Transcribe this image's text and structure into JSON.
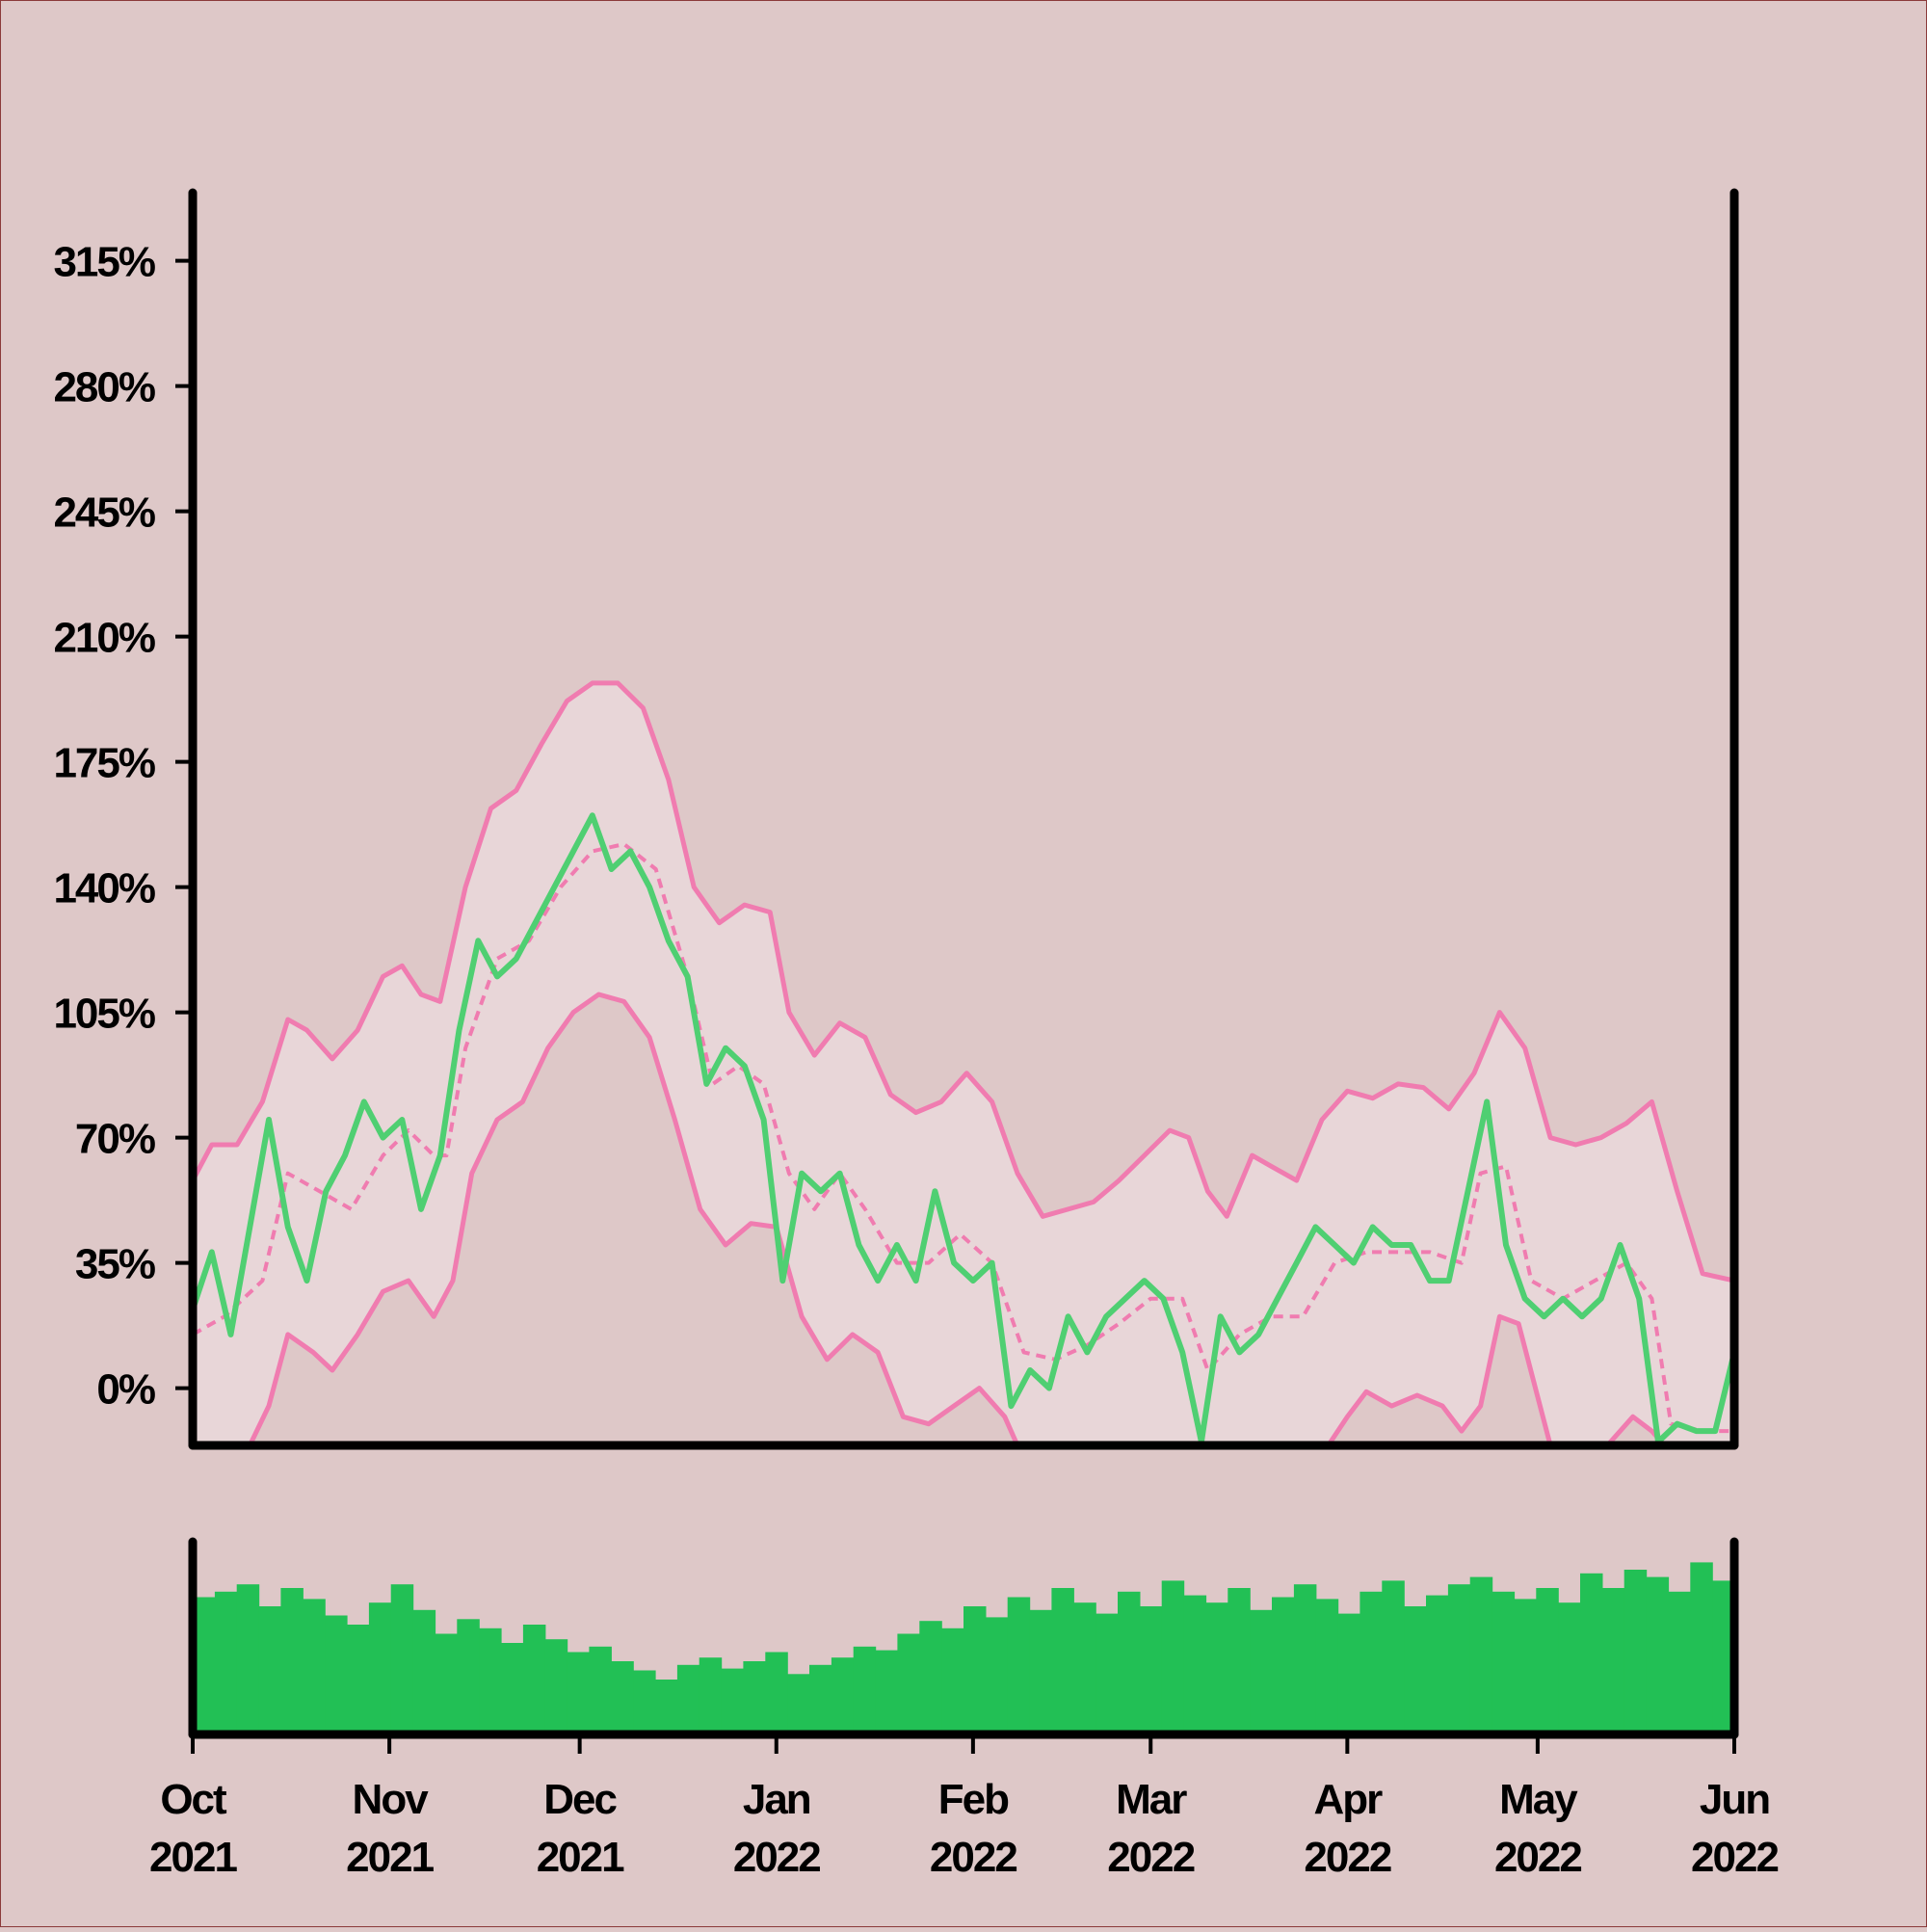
{
  "chart_data": {
    "type": "line",
    "title": "",
    "xlabel": "",
    "ylabel": "",
    "y_tick_labels": [
      "0%",
      "35%",
      "70%",
      "105%",
      "140%",
      "175%",
      "210%",
      "245%",
      "280%",
      "315%"
    ],
    "y_tick_values": [
      0,
      35,
      70,
      105,
      140,
      175,
      210,
      245,
      280,
      315
    ],
    "ylim": [
      -16,
      334
    ],
    "x_tick_labels": [
      {
        "month": "Oct",
        "year": "2021"
      },
      {
        "month": "Nov",
        "year": "2021"
      },
      {
        "month": "Dec",
        "year": "2021"
      },
      {
        "month": "Jan",
        "year": "2022"
      },
      {
        "month": "Feb",
        "year": "2022"
      },
      {
        "month": "Mar",
        "year": "2022"
      },
      {
        "month": "Apr",
        "year": "2022"
      },
      {
        "month": "May",
        "year": "2022"
      },
      {
        "month": "Jun",
        "year": "2022"
      }
    ],
    "x_tick_dates": [
      "2021-10-01",
      "2021-11-01",
      "2021-12-01",
      "2022-01-01",
      "2022-02-01",
      "2022-03-01",
      "2022-04-01",
      "2022-05-01",
      "2022-06-01"
    ],
    "xlim": [
      "2021-10-01",
      "2022-06-01"
    ],
    "grid": false,
    "legend": "none",
    "series": [
      {
        "role": "price",
        "color": "#4fcf72",
        "points": [
          [
            "2021-10-01",
            22
          ],
          [
            "2021-10-04",
            38
          ],
          [
            "2021-10-07",
            15
          ],
          [
            "2021-10-10",
            45
          ],
          [
            "2021-10-13",
            75
          ],
          [
            "2021-10-16",
            45
          ],
          [
            "2021-10-19",
            30
          ],
          [
            "2021-10-22",
            55
          ],
          [
            "2021-10-25",
            65
          ],
          [
            "2021-10-28",
            80
          ],
          [
            "2021-10-31",
            70
          ],
          [
            "2021-11-03",
            75
          ],
          [
            "2021-11-06",
            50
          ],
          [
            "2021-11-09",
            65
          ],
          [
            "2021-11-12",
            100
          ],
          [
            "2021-11-15",
            125
          ],
          [
            "2021-11-18",
            115
          ],
          [
            "2021-11-21",
            120
          ],
          [
            "2021-11-24",
            130
          ],
          [
            "2021-11-27",
            140
          ],
          [
            "2021-11-30",
            150
          ],
          [
            "2021-12-03",
            160
          ],
          [
            "2021-12-06",
            145
          ],
          [
            "2021-12-09",
            150
          ],
          [
            "2021-12-12",
            140
          ],
          [
            "2021-12-15",
            125
          ],
          [
            "2021-12-18",
            115
          ],
          [
            "2021-12-21",
            85
          ],
          [
            "2021-12-24",
            95
          ],
          [
            "2021-12-27",
            90
          ],
          [
            "2021-12-30",
            75
          ],
          [
            "2022-01-02",
            30
          ],
          [
            "2022-01-05",
            60
          ],
          [
            "2022-01-08",
            55
          ],
          [
            "2022-01-11",
            60
          ],
          [
            "2022-01-14",
            40
          ],
          [
            "2022-01-17",
            30
          ],
          [
            "2022-01-20",
            40
          ],
          [
            "2022-01-23",
            30
          ],
          [
            "2022-01-26",
            55
          ],
          [
            "2022-01-29",
            35
          ],
          [
            "2022-02-01",
            30
          ],
          [
            "2022-02-04",
            35
          ],
          [
            "2022-02-07",
            -5
          ],
          [
            "2022-02-10",
            5
          ],
          [
            "2022-02-13",
            0
          ],
          [
            "2022-02-16",
            20
          ],
          [
            "2022-02-19",
            10
          ],
          [
            "2022-02-22",
            20
          ],
          [
            "2022-02-25",
            25
          ],
          [
            "2022-02-28",
            30
          ],
          [
            "2022-03-03",
            25
          ],
          [
            "2022-03-06",
            10
          ],
          [
            "2022-03-09",
            -15
          ],
          [
            "2022-03-12",
            20
          ],
          [
            "2022-03-15",
            10
          ],
          [
            "2022-03-18",
            15
          ],
          [
            "2022-03-21",
            25
          ],
          [
            "2022-03-24",
            35
          ],
          [
            "2022-03-27",
            45
          ],
          [
            "2022-03-30",
            40
          ],
          [
            "2022-04-02",
            35
          ],
          [
            "2022-04-05",
            45
          ],
          [
            "2022-04-08",
            40
          ],
          [
            "2022-04-11",
            40
          ],
          [
            "2022-04-14",
            30
          ],
          [
            "2022-04-17",
            30
          ],
          [
            "2022-04-20",
            55
          ],
          [
            "2022-04-23",
            80
          ],
          [
            "2022-04-26",
            40
          ],
          [
            "2022-04-29",
            25
          ],
          [
            "2022-05-02",
            20
          ],
          [
            "2022-05-05",
            25
          ],
          [
            "2022-05-08",
            20
          ],
          [
            "2022-05-11",
            25
          ],
          [
            "2022-05-14",
            40
          ],
          [
            "2022-05-17",
            25
          ],
          [
            "2022-05-20",
            -15
          ],
          [
            "2022-05-23",
            -10
          ],
          [
            "2022-05-26",
            -12
          ],
          [
            "2022-05-29",
            -12
          ],
          [
            "2022-06-01",
            10
          ]
        ]
      },
      {
        "role": "moving-average",
        "color": "#f07cb0",
        "dashed": true,
        "points": [
          [
            "2021-10-01",
            15
          ],
          [
            "2021-10-06",
            20
          ],
          [
            "2021-10-12",
            30
          ],
          [
            "2021-10-16",
            60
          ],
          [
            "2021-10-21",
            55
          ],
          [
            "2021-10-26",
            50
          ],
          [
            "2021-10-31",
            65
          ],
          [
            "2021-11-04",
            72
          ],
          [
            "2021-11-08",
            65
          ],
          [
            "2021-11-10",
            65
          ],
          [
            "2021-11-13",
            95
          ],
          [
            "2021-11-18",
            120
          ],
          [
            "2021-11-23",
            125
          ],
          [
            "2021-11-28",
            140
          ],
          [
            "2021-12-03",
            150
          ],
          [
            "2021-12-08",
            152
          ],
          [
            "2021-12-13",
            145
          ],
          [
            "2021-12-18",
            115
          ],
          [
            "2021-12-22",
            85
          ],
          [
            "2021-12-26",
            90
          ],
          [
            "2021-12-30",
            85
          ],
          [
            "2022-01-03",
            60
          ],
          [
            "2022-01-07",
            50
          ],
          [
            "2022-01-11",
            60
          ],
          [
            "2022-01-15",
            50
          ],
          [
            "2022-01-20",
            35
          ],
          [
            "2022-01-25",
            35
          ],
          [
            "2022-01-30",
            43
          ],
          [
            "2022-02-04",
            35
          ],
          [
            "2022-02-09",
            10
          ],
          [
            "2022-02-14",
            8
          ],
          [
            "2022-02-19",
            12
          ],
          [
            "2022-02-24",
            18
          ],
          [
            "2022-03-01",
            25
          ],
          [
            "2022-03-06",
            25
          ],
          [
            "2022-03-10",
            5
          ],
          [
            "2022-03-15",
            15
          ],
          [
            "2022-03-20",
            20
          ],
          [
            "2022-03-25",
            20
          ],
          [
            "2022-03-30",
            35
          ],
          [
            "2022-04-04",
            38
          ],
          [
            "2022-04-09",
            38
          ],
          [
            "2022-04-14",
            38
          ],
          [
            "2022-04-19",
            35
          ],
          [
            "2022-04-22",
            60
          ],
          [
            "2022-04-26",
            62
          ],
          [
            "2022-04-30",
            30
          ],
          [
            "2022-05-05",
            25
          ],
          [
            "2022-05-10",
            30
          ],
          [
            "2022-05-15",
            35
          ],
          [
            "2022-05-19",
            25
          ],
          [
            "2022-05-22",
            -10
          ],
          [
            "2022-05-27",
            -12
          ],
          [
            "2022-06-01",
            -12
          ]
        ]
      },
      {
        "role": "upper-band",
        "color": "#f07cb0",
        "points": [
          [
            "2021-10-01",
            58
          ],
          [
            "2021-10-04",
            68
          ],
          [
            "2021-10-08",
            68
          ],
          [
            "2021-10-12",
            80
          ],
          [
            "2021-10-16",
            103
          ],
          [
            "2021-10-19",
            100
          ],
          [
            "2021-10-23",
            92
          ],
          [
            "2021-10-27",
            100
          ],
          [
            "2021-10-31",
            115
          ],
          [
            "2021-11-03",
            118
          ],
          [
            "2021-11-06",
            110
          ],
          [
            "2021-11-09",
            108
          ],
          [
            "2021-11-13",
            140
          ],
          [
            "2021-11-17",
            162
          ],
          [
            "2021-11-21",
            167
          ],
          [
            "2021-11-25",
            180
          ],
          [
            "2021-11-29",
            192
          ],
          [
            "2021-12-03",
            197
          ],
          [
            "2021-12-07",
            197
          ],
          [
            "2021-12-11",
            190
          ],
          [
            "2021-12-15",
            170
          ],
          [
            "2021-12-19",
            140
          ],
          [
            "2021-12-23",
            130
          ],
          [
            "2021-12-27",
            135
          ],
          [
            "2021-12-31",
            133
          ],
          [
            "2022-01-03",
            105
          ],
          [
            "2022-01-07",
            93
          ],
          [
            "2022-01-11",
            102
          ],
          [
            "2022-01-15",
            98
          ],
          [
            "2022-01-19",
            82
          ],
          [
            "2022-01-23",
            77
          ],
          [
            "2022-01-27",
            80
          ],
          [
            "2022-01-31",
            88
          ],
          [
            "2022-02-04",
            80
          ],
          [
            "2022-02-08",
            60
          ],
          [
            "2022-02-12",
            48
          ],
          [
            "2022-02-16",
            50
          ],
          [
            "2022-02-20",
            52
          ],
          [
            "2022-02-24",
            58
          ],
          [
            "2022-02-28",
            65
          ],
          [
            "2022-03-04",
            72
          ],
          [
            "2022-03-07",
            70
          ],
          [
            "2022-03-10",
            55
          ],
          [
            "2022-03-13",
            48
          ],
          [
            "2022-03-17",
            65
          ],
          [
            "2022-03-20",
            62
          ],
          [
            "2022-03-24",
            58
          ],
          [
            "2022-03-28",
            75
          ],
          [
            "2022-04-01",
            83
          ],
          [
            "2022-04-05",
            81
          ],
          [
            "2022-04-09",
            85
          ],
          [
            "2022-04-13",
            84
          ],
          [
            "2022-04-17",
            78
          ],
          [
            "2022-04-21",
            88
          ],
          [
            "2022-04-25",
            105
          ],
          [
            "2022-04-29",
            95
          ],
          [
            "2022-05-03",
            70
          ],
          [
            "2022-05-07",
            68
          ],
          [
            "2022-05-11",
            70
          ],
          [
            "2022-05-15",
            74
          ],
          [
            "2022-05-19",
            80
          ],
          [
            "2022-05-23",
            55
          ],
          [
            "2022-05-27",
            32
          ],
          [
            "2022-06-01",
            30
          ]
        ]
      },
      {
        "role": "lower-band",
        "color": "#f07cb0",
        "points": [
          [
            "2021-10-10",
            -16
          ],
          [
            "2021-10-13",
            -5
          ],
          [
            "2021-10-16",
            15
          ],
          [
            "2021-10-20",
            10
          ],
          [
            "2021-10-23",
            5
          ],
          [
            "2021-10-27",
            15
          ],
          [
            "2021-10-31",
            27
          ],
          [
            "2021-11-04",
            30
          ],
          [
            "2021-11-08",
            20
          ],
          [
            "2021-11-11",
            30
          ],
          [
            "2021-11-14",
            60
          ],
          [
            "2021-11-18",
            75
          ],
          [
            "2021-11-22",
            80
          ],
          [
            "2021-11-26",
            95
          ],
          [
            "2021-11-30",
            105
          ],
          [
            "2021-12-04",
            110
          ],
          [
            "2021-12-08",
            108
          ],
          [
            "2021-12-12",
            98
          ],
          [
            "2021-12-16",
            75
          ],
          [
            "2021-12-20",
            50
          ],
          [
            "2021-12-24",
            40
          ],
          [
            "2021-12-28",
            46
          ],
          [
            "2022-01-01",
            45
          ],
          [
            "2022-01-05",
            20
          ],
          [
            "2022-01-09",
            8
          ],
          [
            "2022-01-13",
            15
          ],
          [
            "2022-01-17",
            10
          ],
          [
            "2022-01-21",
            -8
          ],
          [
            "2022-01-25",
            -10
          ],
          [
            "2022-01-29",
            -5
          ],
          [
            "2022-02-02",
            0
          ],
          [
            "2022-02-06",
            -8
          ],
          [
            "2022-02-08",
            -16
          ],
          [
            "2022-03-29",
            -16
          ],
          [
            "2022-04-01",
            -8
          ],
          [
            "2022-04-04",
            -1
          ],
          [
            "2022-04-08",
            -5
          ],
          [
            "2022-04-12",
            -2
          ],
          [
            "2022-04-16",
            -5
          ],
          [
            "2022-04-19",
            -12
          ],
          [
            "2022-04-22",
            -5
          ],
          [
            "2022-04-25",
            20
          ],
          [
            "2022-04-28",
            18
          ],
          [
            "2022-05-03",
            -16
          ],
          [
            "2022-05-12",
            -16
          ],
          [
            "2022-05-16",
            -8
          ],
          [
            "2022-05-19",
            -12
          ],
          [
            "2022-05-21",
            -16
          ]
        ]
      }
    ],
    "volume": {
      "type": "bar",
      "color": "#22c055",
      "values": [
        0.75,
        0.78,
        0.82,
        0.7,
        0.8,
        0.74,
        0.65,
        0.6,
        0.72,
        0.82,
        0.68,
        0.55,
        0.63,
        0.58,
        0.5,
        0.6,
        0.52,
        0.45,
        0.48,
        0.4,
        0.35,
        0.3,
        0.38,
        0.42,
        0.36,
        0.4,
        0.45,
        0.33,
        0.38,
        0.42,
        0.48,
        0.46,
        0.55,
        0.62,
        0.58,
        0.7,
        0.64,
        0.75,
        0.68,
        0.8,
        0.72,
        0.66,
        0.78,
        0.7,
        0.84,
        0.76,
        0.72,
        0.8,
        0.68,
        0.75,
        0.82,
        0.74,
        0.66,
        0.78,
        0.84,
        0.7,
        0.76,
        0.82,
        0.86,
        0.78,
        0.74,
        0.8,
        0.72,
        0.88,
        0.8,
        0.9,
        0.86,
        0.78,
        0.94,
        0.84
      ]
    }
  }
}
